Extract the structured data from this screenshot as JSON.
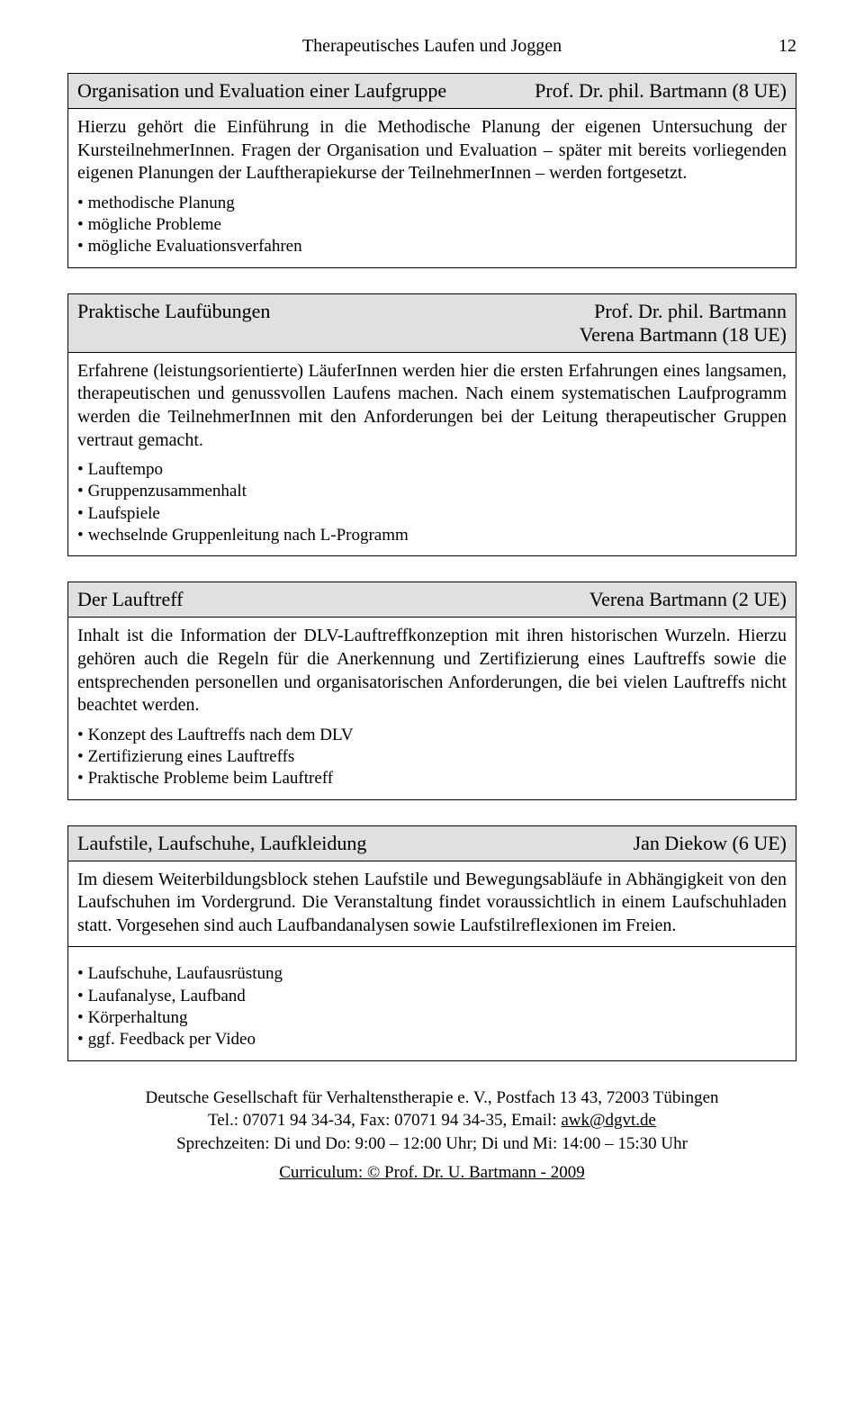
{
  "page": {
    "title": "Therapeutisches Laufen und Joggen",
    "number": "12"
  },
  "sections": [
    {
      "title": "Organisation und Evaluation einer Laufgruppe",
      "instructor": "Prof. Dr. phil. Bartmann (8 UE)",
      "paragraph": "Hierzu gehört die Einführung in die Methodische Planung der eigenen Untersuchung der KursteilnehmerInnen. Fragen der Organisation und Evaluation – später mit bereits vorliegenden eigenen Planungen der Lauftherapiekurse der TeilnehmerInnen – werden fortgesetzt.",
      "bullets": [
        "methodische Planung",
        "mögliche Probleme",
        "mögliche Evaluationsverfahren"
      ],
      "bullets_separated": false
    },
    {
      "title": "Praktische  Laufübungen",
      "instructor": "Prof. Dr. phil. Bartmann\nVerena Bartmann (18 UE)",
      "paragraph": "Erfahrene (leistungsorientierte) LäuferInnen werden hier die ersten Erfahrungen eines langsamen, therapeutischen und genussvollen Laufens machen. Nach einem systematischen Laufprogramm werden die TeilnehmerInnen mit den Anforderungen bei der Leitung therapeutischer Gruppen vertraut gemacht.",
      "bullets": [
        "Lauftempo",
        "Gruppenzusammenhalt",
        "Laufspiele",
        "wechselnde Gruppenleitung nach L-Programm"
      ],
      "bullets_separated": false
    },
    {
      "title": "Der Lauftreff",
      "instructor": "Verena Bartmann (2 UE)",
      "paragraph": "Inhalt ist die Information der DLV-Lauftreffkonzeption mit ihren historischen Wurzeln. Hierzu gehören auch die Regeln für die Anerkennung und Zertifizierung eines Lauftreffs sowie die entsprechenden personellen und organisatorischen Anforderungen, die bei vielen Lauftreffs nicht beachtet werden.",
      "bullets": [
        "Konzept des Lauftreffs nach dem DLV",
        "Zertifizierung eines Lauftreffs",
        "Praktische Probleme beim Lauftreff"
      ],
      "bullets_separated": false
    },
    {
      "title": "Laufstile, Laufschuhe, Laufkleidung",
      "instructor": "Jan Diekow  (6 UE)",
      "paragraph": "Im diesem Weiterbildungsblock stehen Laufstile und Bewegungsabläufe in Abhängigkeit von den Laufschuhen im Vordergrund. Die Veranstaltung findet voraussichtlich in einem Laufschuhladen statt. Vorgesehen sind auch Laufbandanalysen sowie Laufstilreflexionen im Freien.",
      "bullets": [
        "Laufschuhe, Laufausrüstung",
        "Laufanalyse, Laufband",
        "Körperhaltung",
        "ggf. Feedback per Video"
      ],
      "bullets_separated": true
    }
  ],
  "footer": {
    "line1": "Deutsche Gesellschaft für Verhaltenstherapie e. V., Postfach 13 43, 72003 Tübingen",
    "line2_pre": "Tel.: 07071 94 34-34, Fax: 07071 94 34-35, Email: ",
    "email": "awk@dgvt.de",
    "line3": "Sprechzeiten: Di und Do: 9:00 – 12:00 Uhr; Di und Mi: 14:00 – 15:30 Uhr",
    "copyright": "Curriculum: © Prof. Dr. U. Bartmann - 2009"
  }
}
